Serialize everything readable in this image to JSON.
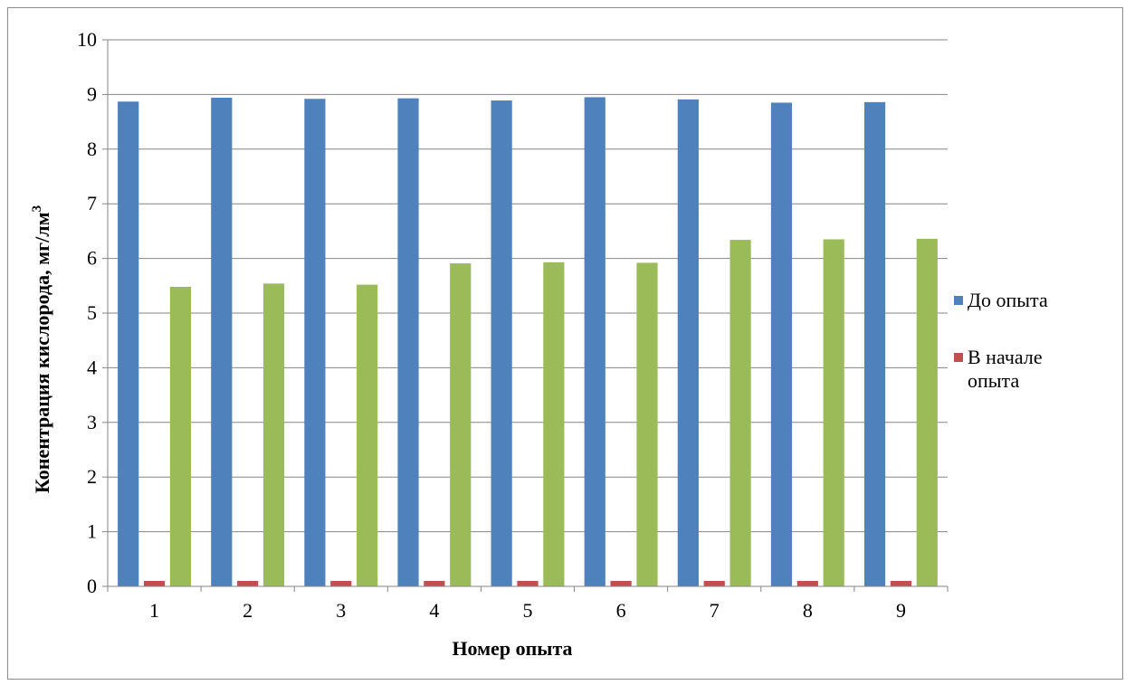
{
  "chart_data": {
    "type": "bar",
    "categories": [
      "1",
      "2",
      "3",
      "4",
      "5",
      "6",
      "7",
      "8",
      "9"
    ],
    "series": [
      {
        "name": "До опыта",
        "color": "#4f81bd",
        "values": [
          8.87,
          8.94,
          8.92,
          8.93,
          8.89,
          8.95,
          8.91,
          8.85,
          8.86
        ]
      },
      {
        "name": "В начале опыта",
        "color": "#c0504d",
        "values": [
          0.1,
          0.1,
          0.1,
          0.1,
          0.1,
          0.1,
          0.1,
          0.1,
          0.1
        ]
      },
      {
        "name": "",
        "color": "#9bbb59",
        "values": [
          5.48,
          5.54,
          5.52,
          5.91,
          5.93,
          5.92,
          6.34,
          6.35,
          6.36
        ]
      }
    ],
    "legend_entries": [
      {
        "lines": [
          "До опыта"
        ],
        "color": "#4f81bd"
      },
      {
        "lines": [
          "В начале",
          "опыта"
        ],
        "color": "#c0504d"
      }
    ],
    "ylim": [
      0,
      10
    ],
    "yticks": [
      "0",
      "1",
      "2",
      "3",
      "4",
      "5",
      "6",
      "7",
      "8",
      "9",
      "10"
    ],
    "xlabel": "Номер опыта",
    "ylabel_main": "Конентрация кислорода, мг/лм",
    "ylabel_sup": "3",
    "grid": true,
    "legend_position": "right"
  }
}
